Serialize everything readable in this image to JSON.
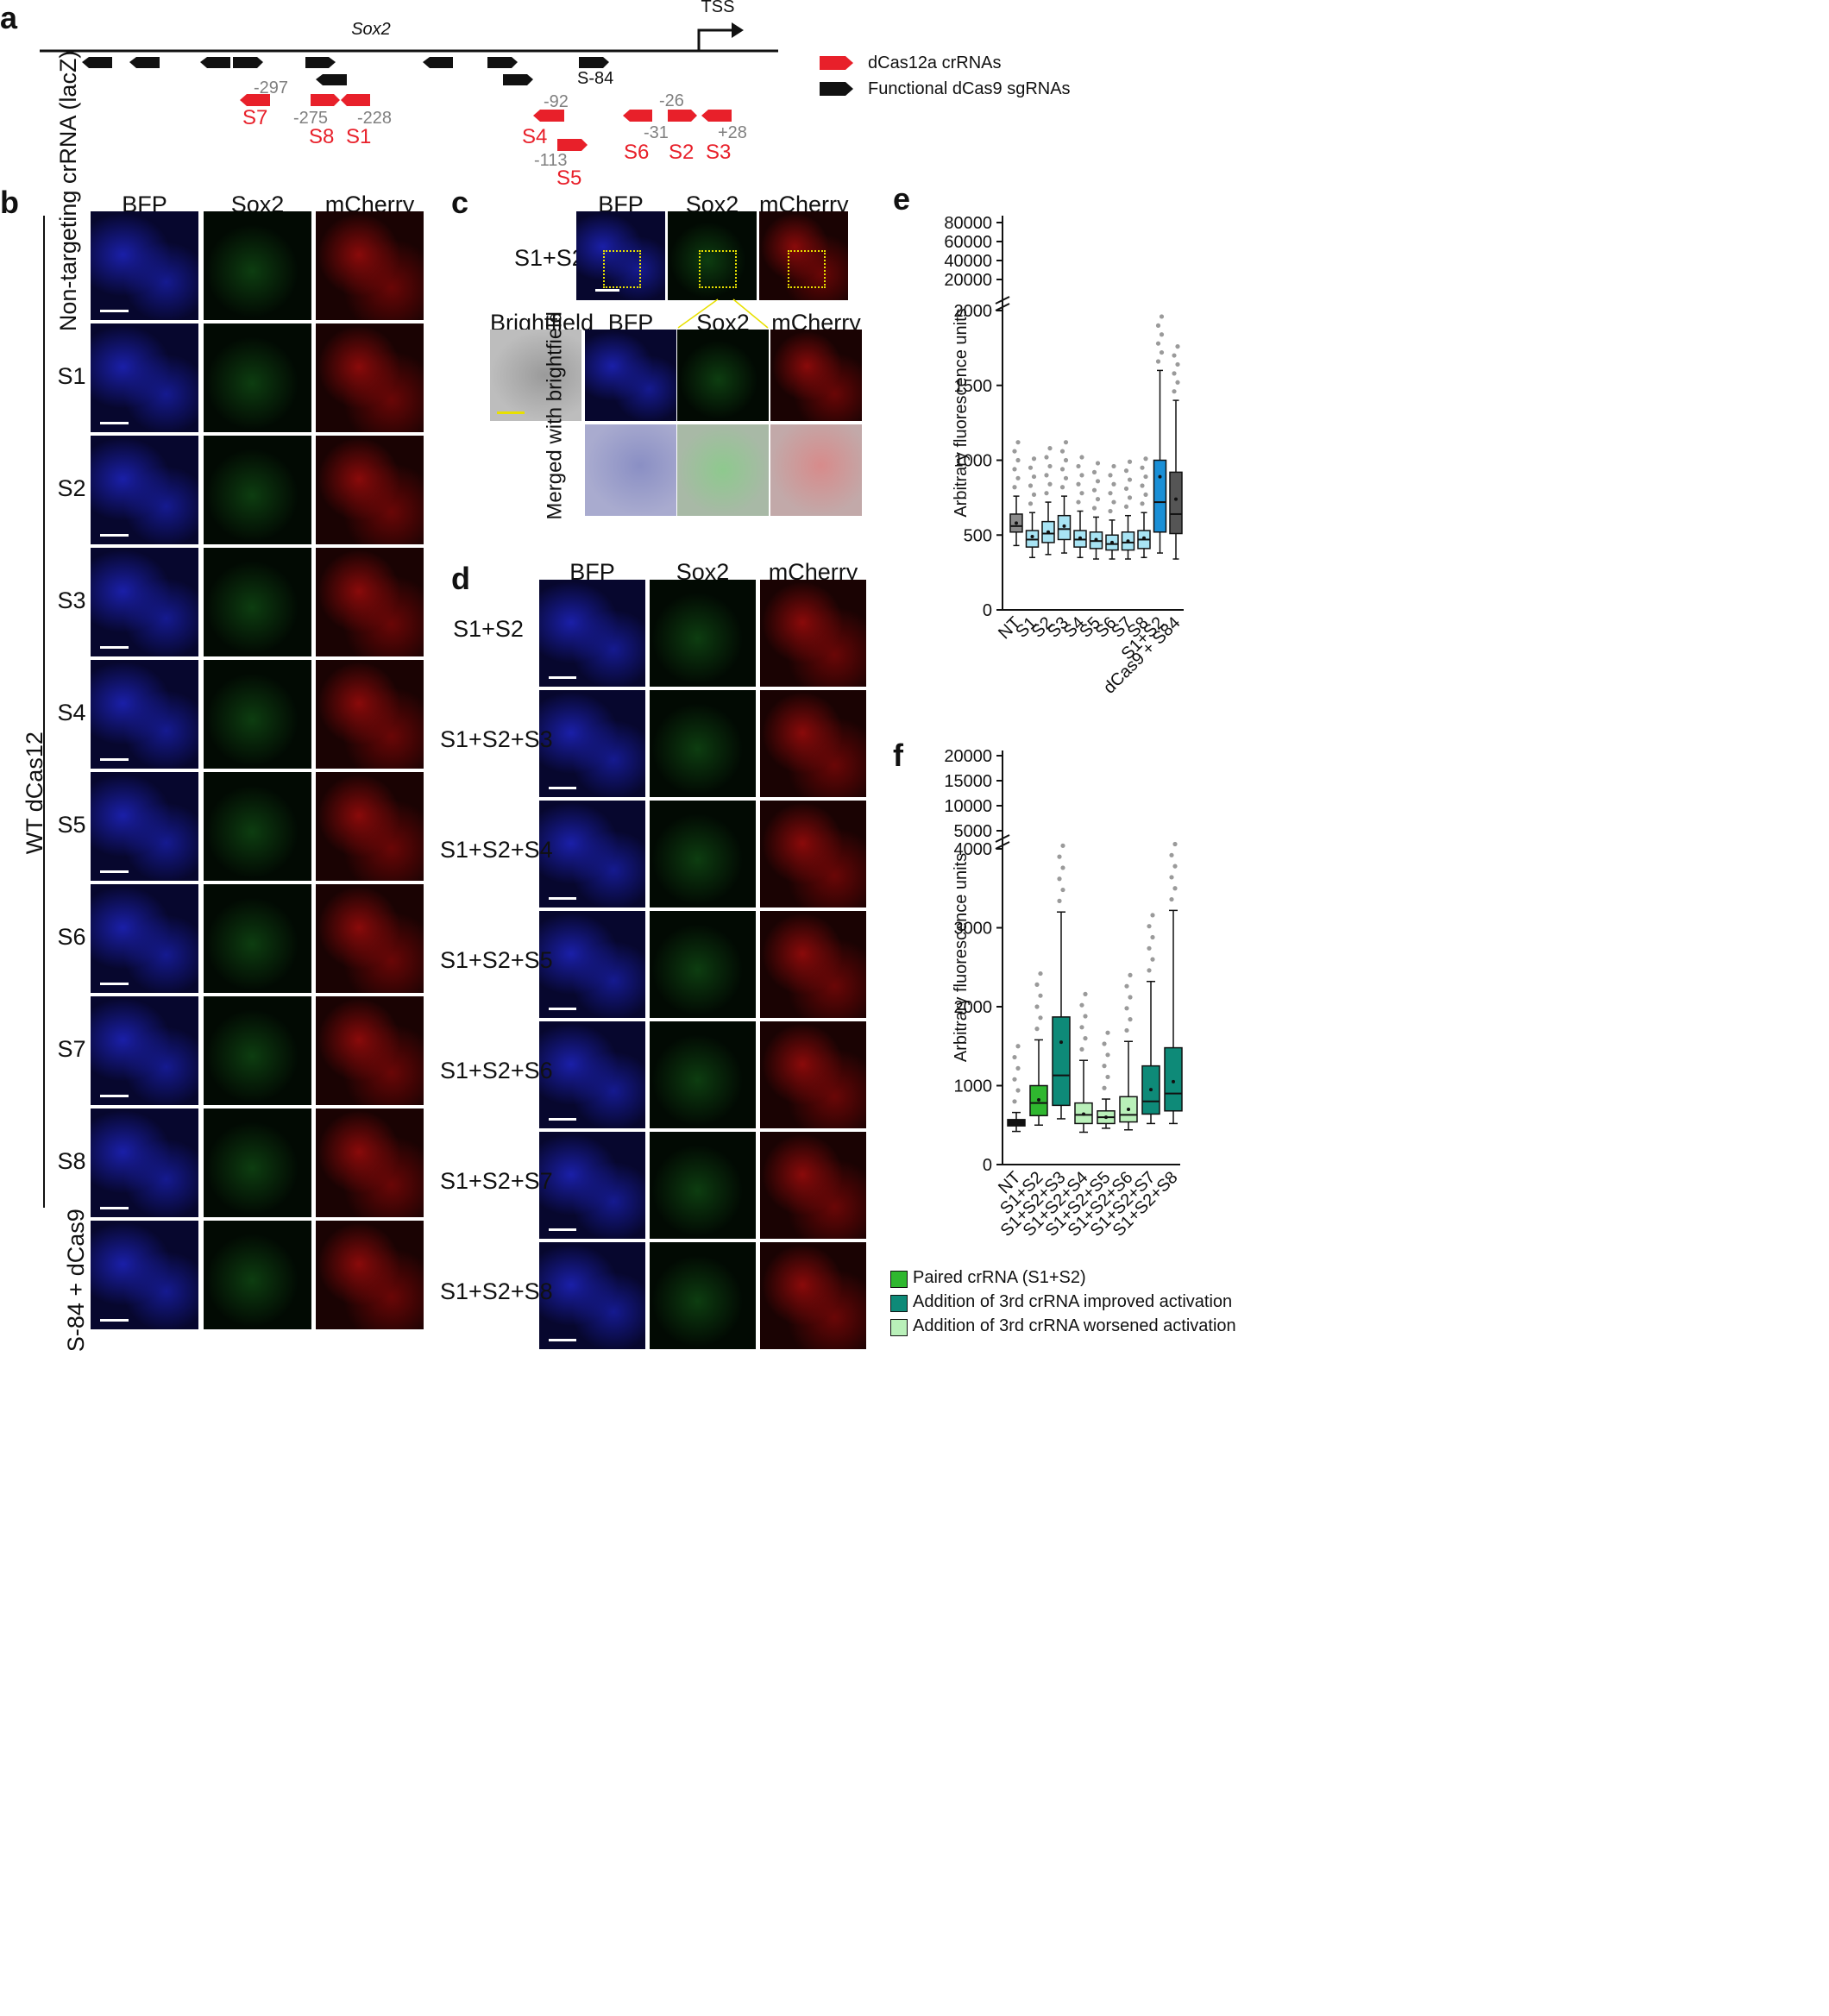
{
  "panels": {
    "a": "a",
    "b": "b",
    "c": "c",
    "d": "d",
    "e": "e",
    "f": "f"
  },
  "panel_a": {
    "gene": "Sox2",
    "tss": "TSS",
    "sg_label": "S-84",
    "legend": [
      "dCas12a crRNAs",
      "Functional dCas9 sgRNAs"
    ],
    "crRNAs": [
      {
        "name": "S7",
        "pos": "-297"
      },
      {
        "name": "S8",
        "pos": "-275"
      },
      {
        "name": "S1",
        "pos": "-228"
      },
      {
        "name": "S4",
        "pos": "-92"
      },
      {
        "name": "S5",
        "pos": "-113"
      },
      {
        "name": "S6",
        "pos": "-31"
      },
      {
        "name": "S2",
        "pos": "-26"
      },
      {
        "name": "S3",
        "pos": "+28"
      }
    ],
    "colors": {
      "crRNA": "#e8202a",
      "sgRNA": "#111111",
      "pos": "#808080"
    }
  },
  "panel_b": {
    "headers": [
      "BFP",
      "Sox2",
      "mCherry"
    ],
    "group_label": "WT dCas12",
    "rows": [
      "Non-targeting crRNA (lacZ)",
      "S1",
      "S2",
      "S3",
      "S4",
      "S5",
      "S6",
      "S7",
      "S8",
      "S-84 + dCas9"
    ]
  },
  "panel_c": {
    "headers": [
      "BFP",
      "Sox2",
      "mCherry"
    ],
    "row": "S1+S2",
    "zoom_headers": [
      "Brightfield",
      "BFP",
      "Sox2",
      "mCherry"
    ],
    "merged_label": "Merged with brightfield"
  },
  "panel_d": {
    "headers": [
      "BFP",
      "Sox2",
      "mCherry"
    ],
    "rows": [
      "S1+S2",
      "S1+S2+S3",
      "S1+S2+S4",
      "S1+S2+S5",
      "S1+S2+S6",
      "S1+S2+S7",
      "S1+S2+S8"
    ]
  },
  "chart_data": [
    {
      "type": "box",
      "panel": "e",
      "ylabel": "Arbitrary fluorescence units",
      "yticks_lower": [
        "0",
        "500",
        "1000",
        "1500",
        "2000"
      ],
      "yticks_upper": [
        "20000",
        "40000",
        "60000",
        "80000"
      ],
      "categories": [
        "NT",
        "S1",
        "S2",
        "S3",
        "S4",
        "S5",
        "S6",
        "S7",
        "S8",
        "S1+S2",
        "dCas9 + S84"
      ],
      "box_colors": [
        "#8a8a8a",
        "#a8e4f4",
        "#a8e4f4",
        "#a8e4f4",
        "#a8e4f4",
        "#a8e4f4",
        "#a8e4f4",
        "#a8e4f4",
        "#a8e4f4",
        "#1a8fd6",
        "#555555"
      ],
      "boxes": [
        {
          "q1": 520,
          "median": 560,
          "q3": 640,
          "wlo": 430,
          "whi": 760,
          "mean": 580
        },
        {
          "q1": 420,
          "median": 470,
          "q3": 530,
          "wlo": 350,
          "whi": 650,
          "mean": 490
        },
        {
          "q1": 450,
          "median": 510,
          "q3": 590,
          "wlo": 370,
          "whi": 720,
          "mean": 520
        },
        {
          "q1": 470,
          "median": 540,
          "q3": 630,
          "wlo": 380,
          "whi": 760,
          "mean": 560
        },
        {
          "q1": 420,
          "median": 470,
          "q3": 530,
          "wlo": 350,
          "whi": 660,
          "mean": 480
        },
        {
          "q1": 410,
          "median": 460,
          "q3": 520,
          "wlo": 340,
          "whi": 620,
          "mean": 470
        },
        {
          "q1": 400,
          "median": 440,
          "q3": 500,
          "wlo": 340,
          "whi": 600,
          "mean": 450
        },
        {
          "q1": 400,
          "median": 450,
          "q3": 520,
          "wlo": 340,
          "whi": 630,
          "mean": 460
        },
        {
          "q1": 410,
          "median": 470,
          "q3": 530,
          "wlo": 350,
          "whi": 650,
          "mean": 480
        },
        {
          "q1": 520,
          "median": 720,
          "q3": 1000,
          "wlo": 380,
          "whi": 1600,
          "mean": 890
        },
        {
          "q1": 510,
          "median": 640,
          "q3": 920,
          "wlo": 340,
          "whi": 1400,
          "mean": 740
        }
      ]
    },
    {
      "type": "box",
      "panel": "f",
      "ylabel": "Arbitrary fluorescence units",
      "yticks_lower": [
        "0",
        "1000",
        "2000",
        "3000",
        "4000"
      ],
      "yticks_upper": [
        "5000",
        "10000",
        "15000",
        "20000"
      ],
      "categories": [
        "NT",
        "S1+S2",
        "S1+S2+S3",
        "S1+S2+S4",
        "S1+S2+S5",
        "S1+S2+S6",
        "S1+S2+S7",
        "S1+S2+S8"
      ],
      "box_colors": [
        "#111111",
        "#2fb72f",
        "#0e8a78",
        "#b9f0b9",
        "#b9f0b9",
        "#b9f0b9",
        "#0e8a78",
        "#0e8a78"
      ],
      "boxes": [
        {
          "q1": 490,
          "median": 520,
          "q3": 570,
          "wlo": 420,
          "whi": 660,
          "mean": 530
        },
        {
          "q1": 620,
          "median": 780,
          "q3": 1000,
          "wlo": 500,
          "whi": 1580,
          "mean": 820
        },
        {
          "q1": 750,
          "median": 1130,
          "q3": 1870,
          "wlo": 580,
          "whi": 3200,
          "mean": 1550
        },
        {
          "q1": 520,
          "median": 630,
          "q3": 780,
          "wlo": 410,
          "whi": 1320,
          "mean": 640
        },
        {
          "q1": 520,
          "median": 600,
          "q3": 680,
          "wlo": 460,
          "whi": 830,
          "mean": 600
        },
        {
          "q1": 540,
          "median": 630,
          "q3": 860,
          "wlo": 440,
          "whi": 1560,
          "mean": 700
        },
        {
          "q1": 640,
          "median": 800,
          "q3": 1250,
          "wlo": 520,
          "whi": 2320,
          "mean": 950
        },
        {
          "q1": 680,
          "median": 900,
          "q3": 1480,
          "wlo": 520,
          "whi": 3220,
          "mean": 1050
        }
      ],
      "legend": [
        {
          "label": "Paired crRNA (S1+S2)",
          "color": "#2fb72f"
        },
        {
          "label": "Addition of 3rd crRNA improved activation",
          "color": "#0e8a78"
        },
        {
          "label": "Addition of 3rd crRNA worsened activation",
          "color": "#b9f0b9"
        }
      ]
    }
  ]
}
